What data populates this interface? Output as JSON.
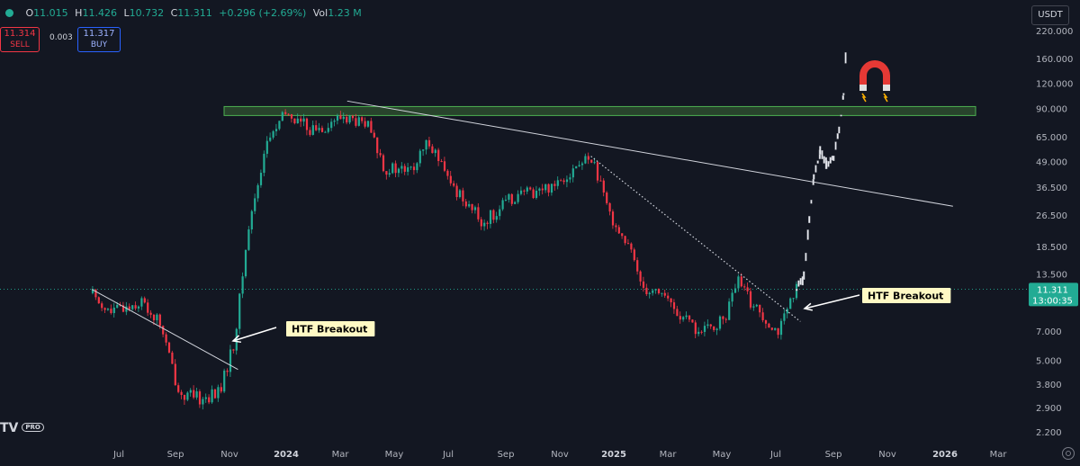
{
  "header": {
    "o_label": "O",
    "o_val": "11.015",
    "h_label": "H",
    "h_val": "11.426",
    "l_label": "L",
    "l_val": "10.732",
    "c_label": "C",
    "c_val": "11.311",
    "change": "+0.296 (+2.69%)",
    "vol_label": "Vol",
    "vol_val": "1.23 M"
  },
  "trade": {
    "sell_price": "11.314",
    "sell_label": "SELL",
    "spread": "0.003",
    "buy_price": "11.317",
    "buy_label": "BUY"
  },
  "currency": "USDT",
  "logo_text": "TV",
  "logo_badge": "PRO",
  "price_tag": {
    "price": "11.311",
    "countdown": "13:00:35"
  },
  "annotations": {
    "breakout_1": "HTF Breakout",
    "breakout_2": "HTF Breakout"
  },
  "colors": {
    "up": "#22ab94",
    "down": "#f23645",
    "background": "#131722",
    "zone": "#28442c",
    "zone_border": "#4caf50",
    "label_bg": "#fff9c4"
  },
  "chart_data": {
    "type": "candlestick",
    "y_scale": "log",
    "yaxis_ticks": [
      "220.000",
      "160.000",
      "120.000",
      "90.000",
      "65.000",
      "49.000",
      "36.500",
      "26.500",
      "18.500",
      "13.500",
      "7.000",
      "5.000",
      "3.800",
      "2.900",
      "2.200"
    ],
    "xaxis_ticks": [
      "Jul",
      "Sep",
      "Nov",
      "2024",
      "Mar",
      "May",
      "Jul",
      "Sep",
      "Nov",
      "2025",
      "Mar",
      "May",
      "Jul",
      "Sep",
      "Nov",
      "2026",
      "Mar"
    ],
    "current_price": 11.311,
    "resistance_zone": [
      83,
      92
    ],
    "price_path": [
      [
        "2023-06-01",
        10.8
      ],
      [
        "2023-06-20",
        8.6
      ],
      [
        "2023-07-05",
        9.2
      ],
      [
        "2023-07-25",
        9.8
      ],
      [
        "2023-08-15",
        7.6
      ],
      [
        "2023-09-05",
        3.4
      ],
      [
        "2023-10-01",
        3.2
      ],
      [
        "2023-10-20",
        3.5
      ],
      [
        "2023-11-05",
        6.2
      ],
      [
        "2023-11-20",
        22
      ],
      [
        "2023-12-10",
        60
      ],
      [
        "2024-01-01",
        85
      ],
      [
        "2024-02-01",
        70
      ],
      [
        "2024-03-05",
        82
      ],
      [
        "2024-04-01",
        73
      ],
      [
        "2024-04-20",
        45
      ],
      [
        "2024-05-20",
        44
      ],
      [
        "2024-06-08",
        63
      ],
      [
        "2024-06-30",
        38
      ],
      [
        "2024-07-20",
        31
      ],
      [
        "2024-08-05",
        24
      ],
      [
        "2024-09-10",
        33
      ],
      [
        "2024-10-15",
        36
      ],
      [
        "2024-12-05",
        52
      ],
      [
        "2024-12-20",
        30
      ],
      [
        "2025-01-15",
        18
      ],
      [
        "2025-02-01",
        11.5
      ],
      [
        "2025-02-20",
        11
      ],
      [
        "2025-03-10",
        8.5
      ],
      [
        "2025-04-05",
        6.8
      ],
      [
        "2025-05-01",
        8.0
      ],
      [
        "2025-05-15",
        12.5
      ],
      [
        "2025-06-01",
        9.5
      ],
      [
        "2025-06-30",
        7.0
      ],
      [
        "2025-07-20",
        11.3
      ]
    ],
    "projection_path": [
      [
        "2025-07-20",
        11.3
      ],
      [
        "2025-07-28",
        13.0
      ],
      [
        "2025-08-03",
        25
      ],
      [
        "2025-08-08",
        40
      ],
      [
        "2025-08-15",
        55
      ],
      [
        "2025-08-22",
        48
      ],
      [
        "2025-08-30",
        52
      ],
      [
        "2025-09-05",
        70
      ],
      [
        "2025-09-10",
        105
      ],
      [
        "2025-09-13",
        190
      ]
    ],
    "trendlines": [
      {
        "start": [
          "2023-06-01",
          11.3
        ],
        "end": [
          "2023-11-10",
          4.5
        ],
        "style": "solid"
      },
      {
        "start": [
          "2024-03-10",
          98
        ],
        "end": [
          "2026-01-10",
          29.3
        ],
        "style": "solid"
      },
      {
        "start": [
          "2024-12-05",
          52
        ],
        "end": [
          "2025-07-25",
          7.8
        ],
        "style": "dotted"
      }
    ]
  }
}
